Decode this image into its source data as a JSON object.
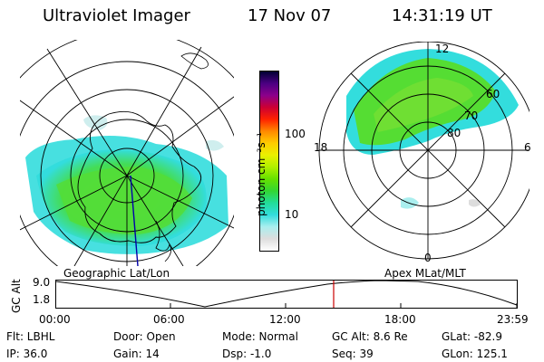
{
  "header": {
    "title": "Ultraviolet Imager",
    "date": "17 Nov 07",
    "time": "14:31:19 UT"
  },
  "left_panel": {
    "caption": "Geographic Lat/Lon"
  },
  "right_panel": {
    "caption": "Apex MLat/MLT",
    "mlt_labels": [
      "12",
      "18",
      "6",
      "0"
    ],
    "mlat_labels": [
      "60",
      "70",
      "80"
    ]
  },
  "colorbar": {
    "label": "photon cm⁻²s⁻¹",
    "scale": "log",
    "ticks": [
      "100",
      "10"
    ],
    "colors": [
      "#000033",
      "#4b0082",
      "#8b008b",
      "#cc0033",
      "#ff2200",
      "#ff8800",
      "#ffcc00",
      "#eaf000",
      "#b0f000",
      "#66e000",
      "#33d633",
      "#22dd99",
      "#33dddd",
      "#aaeeee",
      "#dddddd",
      "#ffffff"
    ]
  },
  "altitude_plot": {
    "ylabel": "GC Alt",
    "y_ticks": [
      "9.0",
      "1.8"
    ],
    "x_ticks": [
      "00:00",
      "06:00",
      "12:00",
      "18:00",
      "23:59"
    ],
    "current_time_marker": "14:31",
    "marker_color": "#cc0000"
  },
  "info": {
    "filter": "Flt: LBHL",
    "ip": "IP: 36.0",
    "door": "Door: Open",
    "gain": "Gain: 14",
    "mode": "Mode: Normal",
    "dsp": "Dsp:  -1.0",
    "gc_alt": "GC Alt: 8.6 Re",
    "seq": "Seq: 39",
    "glat": "GLat: -82.9",
    "glon": "GLon: 125.1"
  }
}
